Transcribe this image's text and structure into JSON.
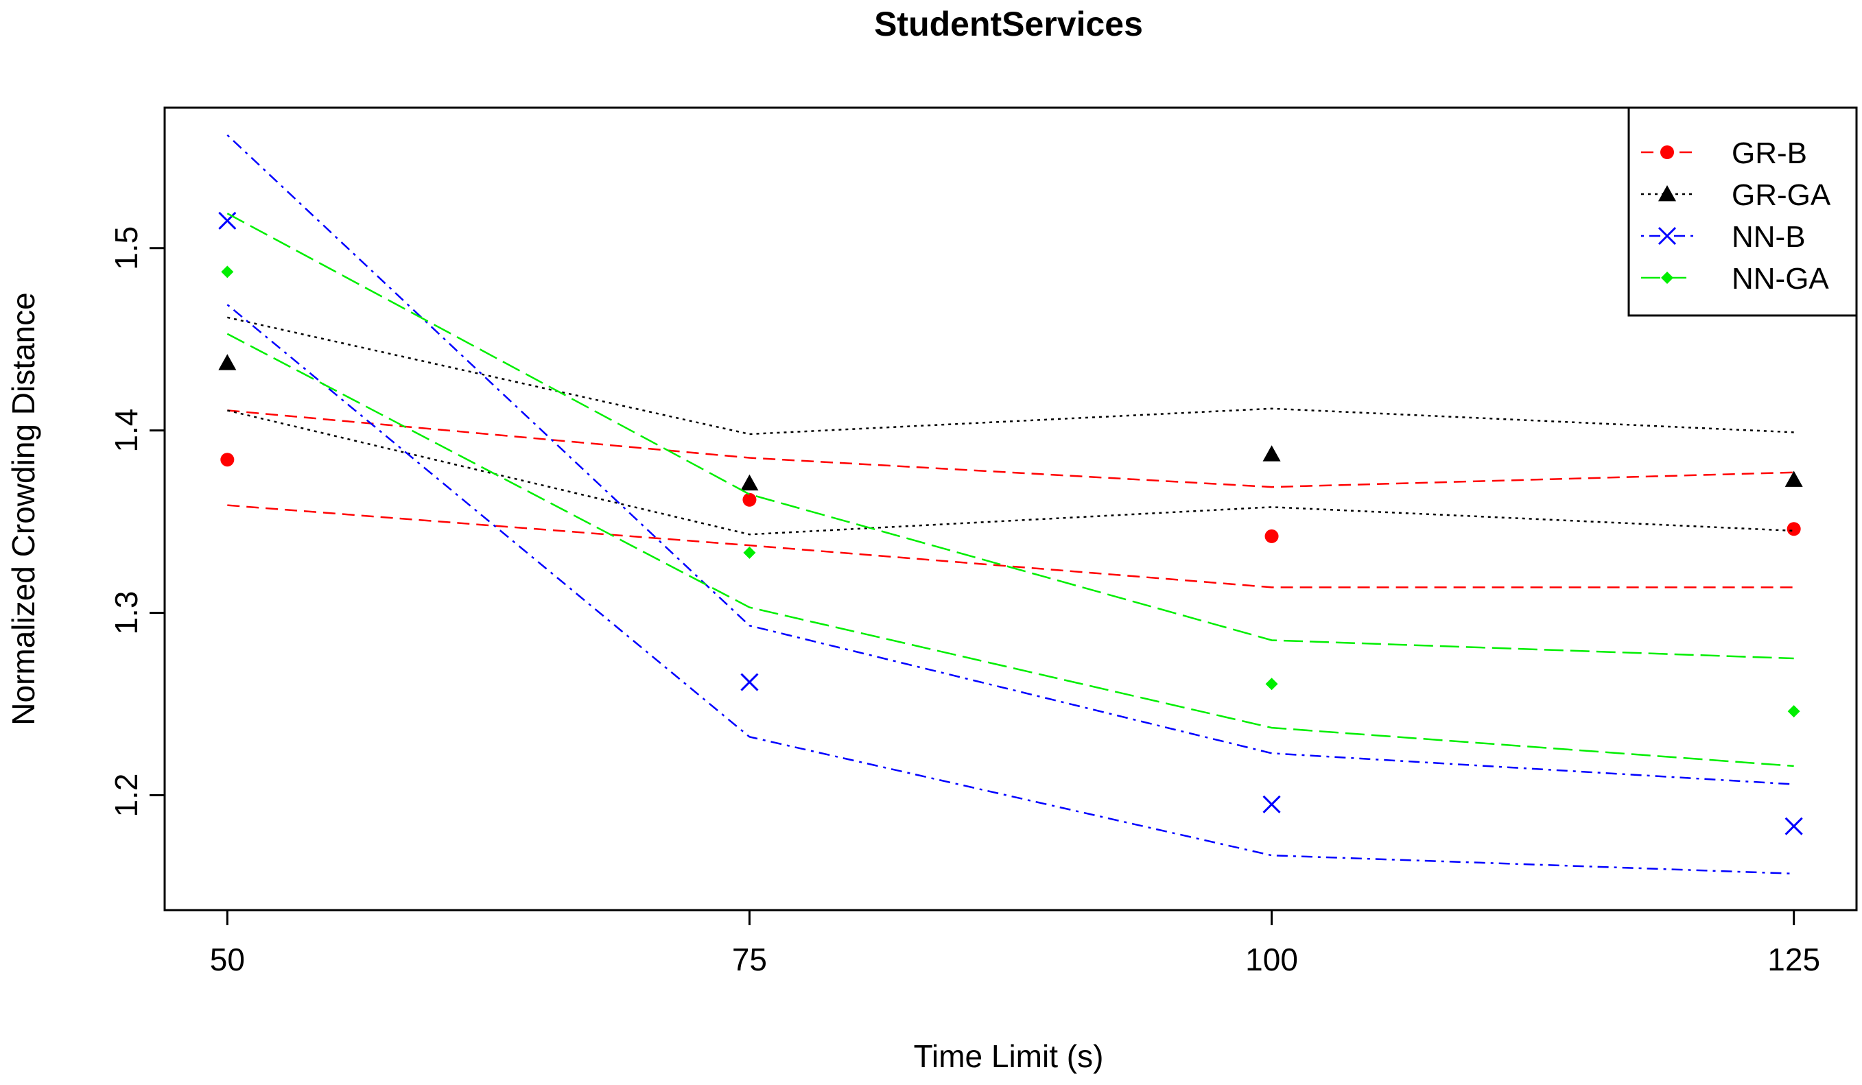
{
  "chart_data": {
    "type": "line",
    "title": "StudentServices",
    "xlabel": "Time Limit (s)",
    "ylabel": "Normalized Crowding Distance",
    "x": [
      50,
      75,
      100,
      125
    ],
    "x_ticks": [
      "50",
      "75",
      "100",
      "125"
    ],
    "y_ticks": [
      "1.2",
      "1.3",
      "1.4",
      "1.5"
    ],
    "xlim": [
      47,
      128
    ],
    "ylim": [
      1.137,
      1.577
    ],
    "grid": false,
    "legend_position": "top-right",
    "series": [
      {
        "name": "GR-B",
        "color": "#ff0000",
        "marker": "circle",
        "line_style": "dashed",
        "values": [
          1.384,
          1.362,
          1.342,
          1.346
        ],
        "upper": [
          1.411,
          1.385,
          1.369,
          1.377
        ],
        "lower": [
          1.359,
          1.337,
          1.314,
          1.314
        ]
      },
      {
        "name": "GR-GA",
        "color": "#000000",
        "marker": "triangle",
        "line_style": "dotted",
        "values": [
          1.437,
          1.371,
          1.387,
          1.373
        ],
        "upper": [
          1.462,
          1.398,
          1.412,
          1.399
        ],
        "lower": [
          1.411,
          1.343,
          1.358,
          1.345
        ]
      },
      {
        "name": "NN-B",
        "color": "#0000ff",
        "marker": "cross",
        "line_style": "dotdash",
        "values": [
          1.515,
          1.262,
          1.195,
          1.183
        ],
        "upper": [
          1.562,
          1.293,
          1.223,
          1.206
        ],
        "lower": [
          1.469,
          1.232,
          1.167,
          1.157
        ]
      },
      {
        "name": "NN-GA",
        "color": "#00ee00",
        "marker": "diamond",
        "line_style": "longdash",
        "values": [
          1.487,
          1.333,
          1.261,
          1.246
        ],
        "upper": [
          1.519,
          1.365,
          1.285,
          1.275
        ],
        "lower": [
          1.453,
          1.303,
          1.237,
          1.216
        ]
      }
    ]
  }
}
